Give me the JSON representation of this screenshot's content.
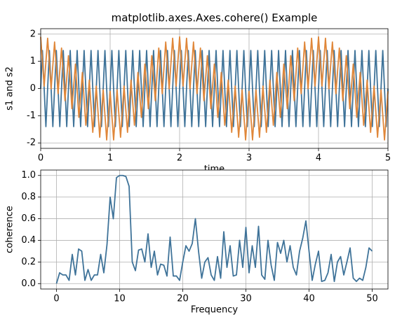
{
  "chart_data": [
    {
      "type": "line",
      "title": "matplotlib.axes.Axes.cohere() Example",
      "x_label": "time",
      "y_label": "s1 and s2",
      "x": [
        0,
        0.025,
        0.05,
        0.075,
        0.1,
        0.125,
        0.15,
        0.175,
        0.2,
        0.225,
        0.25,
        0.275,
        0.3,
        0.325,
        0.35,
        0.375,
        0.4,
        0.425,
        0.45,
        0.475,
        0.5,
        0.525,
        0.55,
        0.575,
        0.6,
        0.625,
        0.65,
        0.675,
        0.7,
        0.725,
        0.75,
        0.775,
        0.8,
        0.825,
        0.85,
        0.875,
        0.9,
        0.925,
        0.95,
        0.975,
        1,
        1.025,
        1.05,
        1.075,
        1.1,
        1.125,
        1.15,
        1.175,
        1.2,
        1.225,
        1.25,
        1.275,
        1.3,
        1.325,
        1.35,
        1.375,
        1.4,
        1.425,
        1.45,
        1.475,
        1.5,
        1.525,
        1.55,
        1.575,
        1.6,
        1.625,
        1.65,
        1.675,
        1.7,
        1.725,
        1.75,
        1.775,
        1.8,
        1.825,
        1.85,
        1.875,
        1.9,
        1.925,
        1.95,
        1.975,
        2,
        2.025,
        2.05,
        2.075,
        2.1,
        2.125,
        2.15,
        2.175,
        2.2,
        2.225,
        2.25,
        2.275,
        2.3,
        2.325,
        2.35,
        2.375,
        2.4,
        2.425,
        2.45,
        2.475,
        2.5,
        2.525,
        2.55,
        2.575,
        2.6,
        2.625,
        2.65,
        2.675,
        2.7,
        2.725,
        2.75,
        2.775,
        2.8,
        2.825,
        2.85,
        2.875,
        2.9,
        2.925,
        2.95,
        2.975,
        3,
        3.025,
        3.05,
        3.075,
        3.1,
        3.125,
        3.15,
        3.175,
        3.2,
        3.225,
        3.25,
        3.275,
        3.3,
        3.325,
        3.35,
        3.375,
        3.4,
        3.425,
        3.45,
        3.475,
        3.5,
        3.525,
        3.55,
        3.575,
        3.6,
        3.625,
        3.65,
        3.675,
        3.7,
        3.725,
        3.75,
        3.775,
        3.8,
        3.825,
        3.85,
        3.875,
        3.9,
        3.925,
        3.95,
        3.975,
        4,
        4.025,
        4.05,
        4.075,
        4.1,
        4.125,
        4.15,
        4.175,
        4.2,
        4.225,
        4.25,
        4.275,
        4.3,
        4.325,
        4.35,
        4.375,
        4.4,
        4.425,
        4.45,
        4.475,
        4.5,
        4.525,
        4.55,
        4.575,
        4.6,
        4.625,
        4.65,
        4.675,
        4.7,
        4.725,
        4.75,
        4.775,
        4.8,
        4.825,
        4.85,
        4.875,
        4.9,
        4.925,
        4.95,
        4.975,
        5
      ],
      "series": [
        {
          "color": "#3f7399",
          "values": [
            0,
            1.4,
            0,
            -1.4,
            0,
            1.4,
            0,
            -1.4,
            0,
            1.4,
            0,
            -1.4,
            0,
            1.4,
            0,
            -1.4,
            0,
            1.4,
            0,
            -1.4,
            0,
            1.4,
            0,
            -1.4,
            0,
            1.4,
            0,
            -1.4,
            0,
            1.4,
            0,
            -1.4,
            0,
            1.4,
            0,
            -1.4,
            0,
            1.4,
            0,
            -1.4,
            0,
            1.4,
            0,
            -1.4,
            0,
            1.4,
            0,
            -1.4,
            0,
            1.4,
            0,
            -1.4,
            0,
            1.4,
            0,
            -1.4,
            0,
            1.4,
            0,
            -1.4,
            0,
            1.4,
            0,
            -1.4,
            0,
            1.4,
            0,
            -1.4,
            0,
            1.4,
            0,
            -1.4,
            0,
            1.4,
            0,
            -1.4,
            0,
            1.4,
            0,
            -1.4,
            0,
            1.4,
            0,
            -1.4,
            0,
            1.4,
            0,
            -1.4,
            0,
            1.4,
            0,
            -1.4,
            0,
            1.4,
            0,
            -1.4,
            0,
            1.4,
            0,
            -1.4,
            0,
            1.4,
            0,
            -1.4,
            0,
            1.4,
            0,
            -1.4,
            0,
            1.4,
            0,
            -1.4,
            0,
            1.4,
            0,
            -1.4,
            0,
            1.4,
            0,
            -1.4,
            0,
            1.4,
            0,
            -1.4,
            0,
            1.4,
            0,
            -1.4,
            0,
            1.4,
            0,
            -1.4,
            0,
            1.4,
            0,
            -1.4,
            0,
            1.4,
            0,
            -1.4,
            0,
            1.4,
            0,
            -1.4,
            0,
            1.4,
            0,
            -1.4,
            0,
            1.4,
            0,
            -1.4,
            0,
            1.4,
            0,
            -1.4,
            0,
            1.4,
            0,
            -1.4,
            0,
            1.4,
            0,
            -1.4,
            0,
            1.4,
            0,
            -1.4,
            0,
            1.4,
            0,
            -1.4,
            0,
            1.4,
            0,
            -1.4,
            0,
            1.4,
            0,
            -1.4,
            0,
            1.4,
            0,
            -1.4,
            0,
            1.4,
            0,
            -1.4,
            0,
            1.4,
            0,
            -1.4,
            0,
            1.4,
            0,
            -1.4,
            0,
            1.4,
            0,
            -1.4,
            0
          ]
        },
        {
          "color": "#e0873a",
          "values": [
            1.9,
            1.0,
            0.09,
            0.97,
            1.85,
            0.92,
            -0.01,
            0.85,
            1.71,
            0.76,
            -0.19,
            0.65,
            1.49,
            0.52,
            -0.45,
            0.38,
            1.21,
            0.23,
            -0.74,
            0.08,
            0.9,
            -0.08,
            -1.06,
            -0.23,
            0.59,
            -0.38,
            -1.35,
            -0.52,
            0.31,
            -0.65,
            -1.61,
            -0.76,
            0.09,
            -0.85,
            -1.79,
            -0.92,
            -0.05,
            -0.97,
            -1.89,
            -1.0,
            -0.1,
            -1.0,
            -1.89,
            -0.97,
            -0.05,
            -0.92,
            -1.79,
            -0.85,
            0.09,
            -0.76,
            -1.61,
            -0.65,
            0.31,
            -0.52,
            -1.35,
            -0.38,
            0.59,
            -0.23,
            -1.06,
            -0.08,
            0.9,
            0.08,
            -0.74,
            0.23,
            1.21,
            0.38,
            -0.45,
            0.52,
            1.49,
            0.65,
            -0.19,
            0.76,
            1.71,
            0.85,
            -0.01,
            0.92,
            1.85,
            0.97,
            0.09,
            1.0,
            1.9,
            1.0,
            0.09,
            0.97,
            1.85,
            0.92,
            -0.01,
            0.85,
            1.71,
            0.76,
            -0.19,
            0.65,
            1.49,
            0.52,
            -0.45,
            0.38,
            1.21,
            0.23,
            -0.74,
            0.08,
            0.9,
            -0.08,
            -1.06,
            -0.23,
            0.59,
            -0.38,
            -1.35,
            -0.52,
            0.31,
            -0.65,
            -1.61,
            -0.76,
            0.09,
            -0.85,
            -1.79,
            -0.92,
            -0.05,
            -0.97,
            -1.89,
            -1.0,
            -0.1,
            -1.0,
            -1.89,
            -0.97,
            -0.05,
            -0.92,
            -1.79,
            -0.85,
            0.09,
            -0.76,
            -1.61,
            -0.65,
            0.31,
            -0.52,
            -1.35,
            -0.38,
            0.59,
            -0.23,
            -1.06,
            -0.08,
            0.9,
            0.08,
            -0.74,
            0.23,
            1.21,
            0.38,
            -0.45,
            0.52,
            1.49,
            0.65,
            -0.19,
            0.76,
            1.71,
            0.85,
            -0.01,
            0.92,
            1.85,
            0.97,
            0.09,
            1.0,
            1.9,
            1.0,
            0.09,
            0.97,
            1.85,
            0.92,
            -0.01,
            0.85,
            1.71,
            0.76,
            -0.19,
            0.65,
            1.49,
            0.52,
            -0.45,
            0.38,
            1.21,
            0.23,
            -0.74,
            0.08,
            0.9,
            -0.08,
            -1.06,
            -0.23,
            0.59,
            -0.38,
            -1.35,
            -0.52,
            0.31,
            -0.65,
            -1.61,
            -0.76,
            0.09,
            -0.85,
            -1.79,
            -0.92,
            -0.05,
            -0.97,
            -1.89,
            -1.0,
            -0.1
          ]
        }
      ],
      "xlim": [
        0,
        5
      ],
      "xticks": [
        0,
        1,
        2,
        3,
        4,
        5
      ],
      "ylim": [
        -2.2,
        2.2
      ],
      "yticks": [
        -2,
        -1,
        0,
        1,
        2
      ],
      "grid": true
    },
    {
      "type": "line",
      "x_label": "Frequency",
      "y_label": "coherence",
      "x": [
        0,
        0.5,
        1,
        1.5,
        2,
        2.5,
        3,
        3.5,
        4,
        4.5,
        5,
        5.5,
        6,
        6.5,
        7,
        7.5,
        8,
        8.5,
        9,
        9.5,
        10,
        10.5,
        11,
        11.5,
        12,
        12.5,
        13,
        13.5,
        14,
        14.5,
        15,
        15.5,
        16,
        16.5,
        17,
        17.5,
        18,
        18.5,
        19,
        19.5,
        20,
        20.5,
        21,
        21.5,
        22,
        22.5,
        23,
        23.5,
        24,
        24.5,
        25,
        25.5,
        26,
        26.5,
        27,
        27.5,
        28,
        28.5,
        29,
        29.5,
        30,
        30.5,
        31,
        31.5,
        32,
        32.5,
        33,
        33.5,
        34,
        34.5,
        35,
        35.5,
        36,
        36.5,
        37,
        37.5,
        38,
        38.5,
        39,
        39.5,
        40,
        40.5,
        41,
        41.5,
        42,
        42.5,
        43,
        43.5,
        44,
        44.5,
        45,
        45.5,
        46,
        46.5,
        47,
        47.5,
        48,
        48.5,
        49,
        49.5,
        50
      ],
      "series": [
        {
          "color": "#3f7399",
          "values": [
            0,
            0.1,
            0.08,
            0.08,
            0.03,
            0.27,
            0.08,
            0.32,
            0.3,
            0.03,
            0.13,
            0.03,
            0.08,
            0.08,
            0.27,
            0.1,
            0.36,
            0.8,
            0.6,
            0.98,
            1.0,
            1.0,
            0.99,
            0.9,
            0.2,
            0.12,
            0.31,
            0.32,
            0.2,
            0.46,
            0.15,
            0.3,
            0.08,
            0.18,
            0.17,
            0.07,
            0.43,
            0.07,
            0.07,
            0.03,
            0.2,
            0.35,
            0.3,
            0.37,
            0.6,
            0.3,
            0.05,
            0.2,
            0.24,
            0.08,
            0.03,
            0.25,
            0.05,
            0.48,
            0.15,
            0.35,
            0.07,
            0.08,
            0.4,
            0.15,
            0.52,
            0.1,
            0.35,
            0.15,
            0.53,
            0.08,
            0.04,
            0.4,
            0.17,
            0.03,
            0.38,
            0.28,
            0.4,
            0.2,
            0.35,
            0.15,
            0.08,
            0.3,
            0.42,
            0.58,
            0.3,
            0.03,
            0.18,
            0.3,
            0.02,
            0.03,
            0.1,
            0.27,
            0.02,
            0.2,
            0.25,
            0.08,
            0.2,
            0.33,
            0.05,
            0.02,
            0.05,
            0.03,
            0.15,
            0.33,
            0.3
          ]
        }
      ],
      "xlim": [
        -2.5,
        52.5
      ],
      "xticks": [
        0,
        10,
        20,
        30,
        40,
        50
      ],
      "ylim": [
        -0.05,
        1.05
      ],
      "yticks": [
        {
          "value": 0,
          "label": "0.0"
        },
        0.2,
        0.4,
        0.6,
        0.8,
        {
          "value": 1,
          "label": "1.0"
        }
      ],
      "grid": true
    }
  ]
}
